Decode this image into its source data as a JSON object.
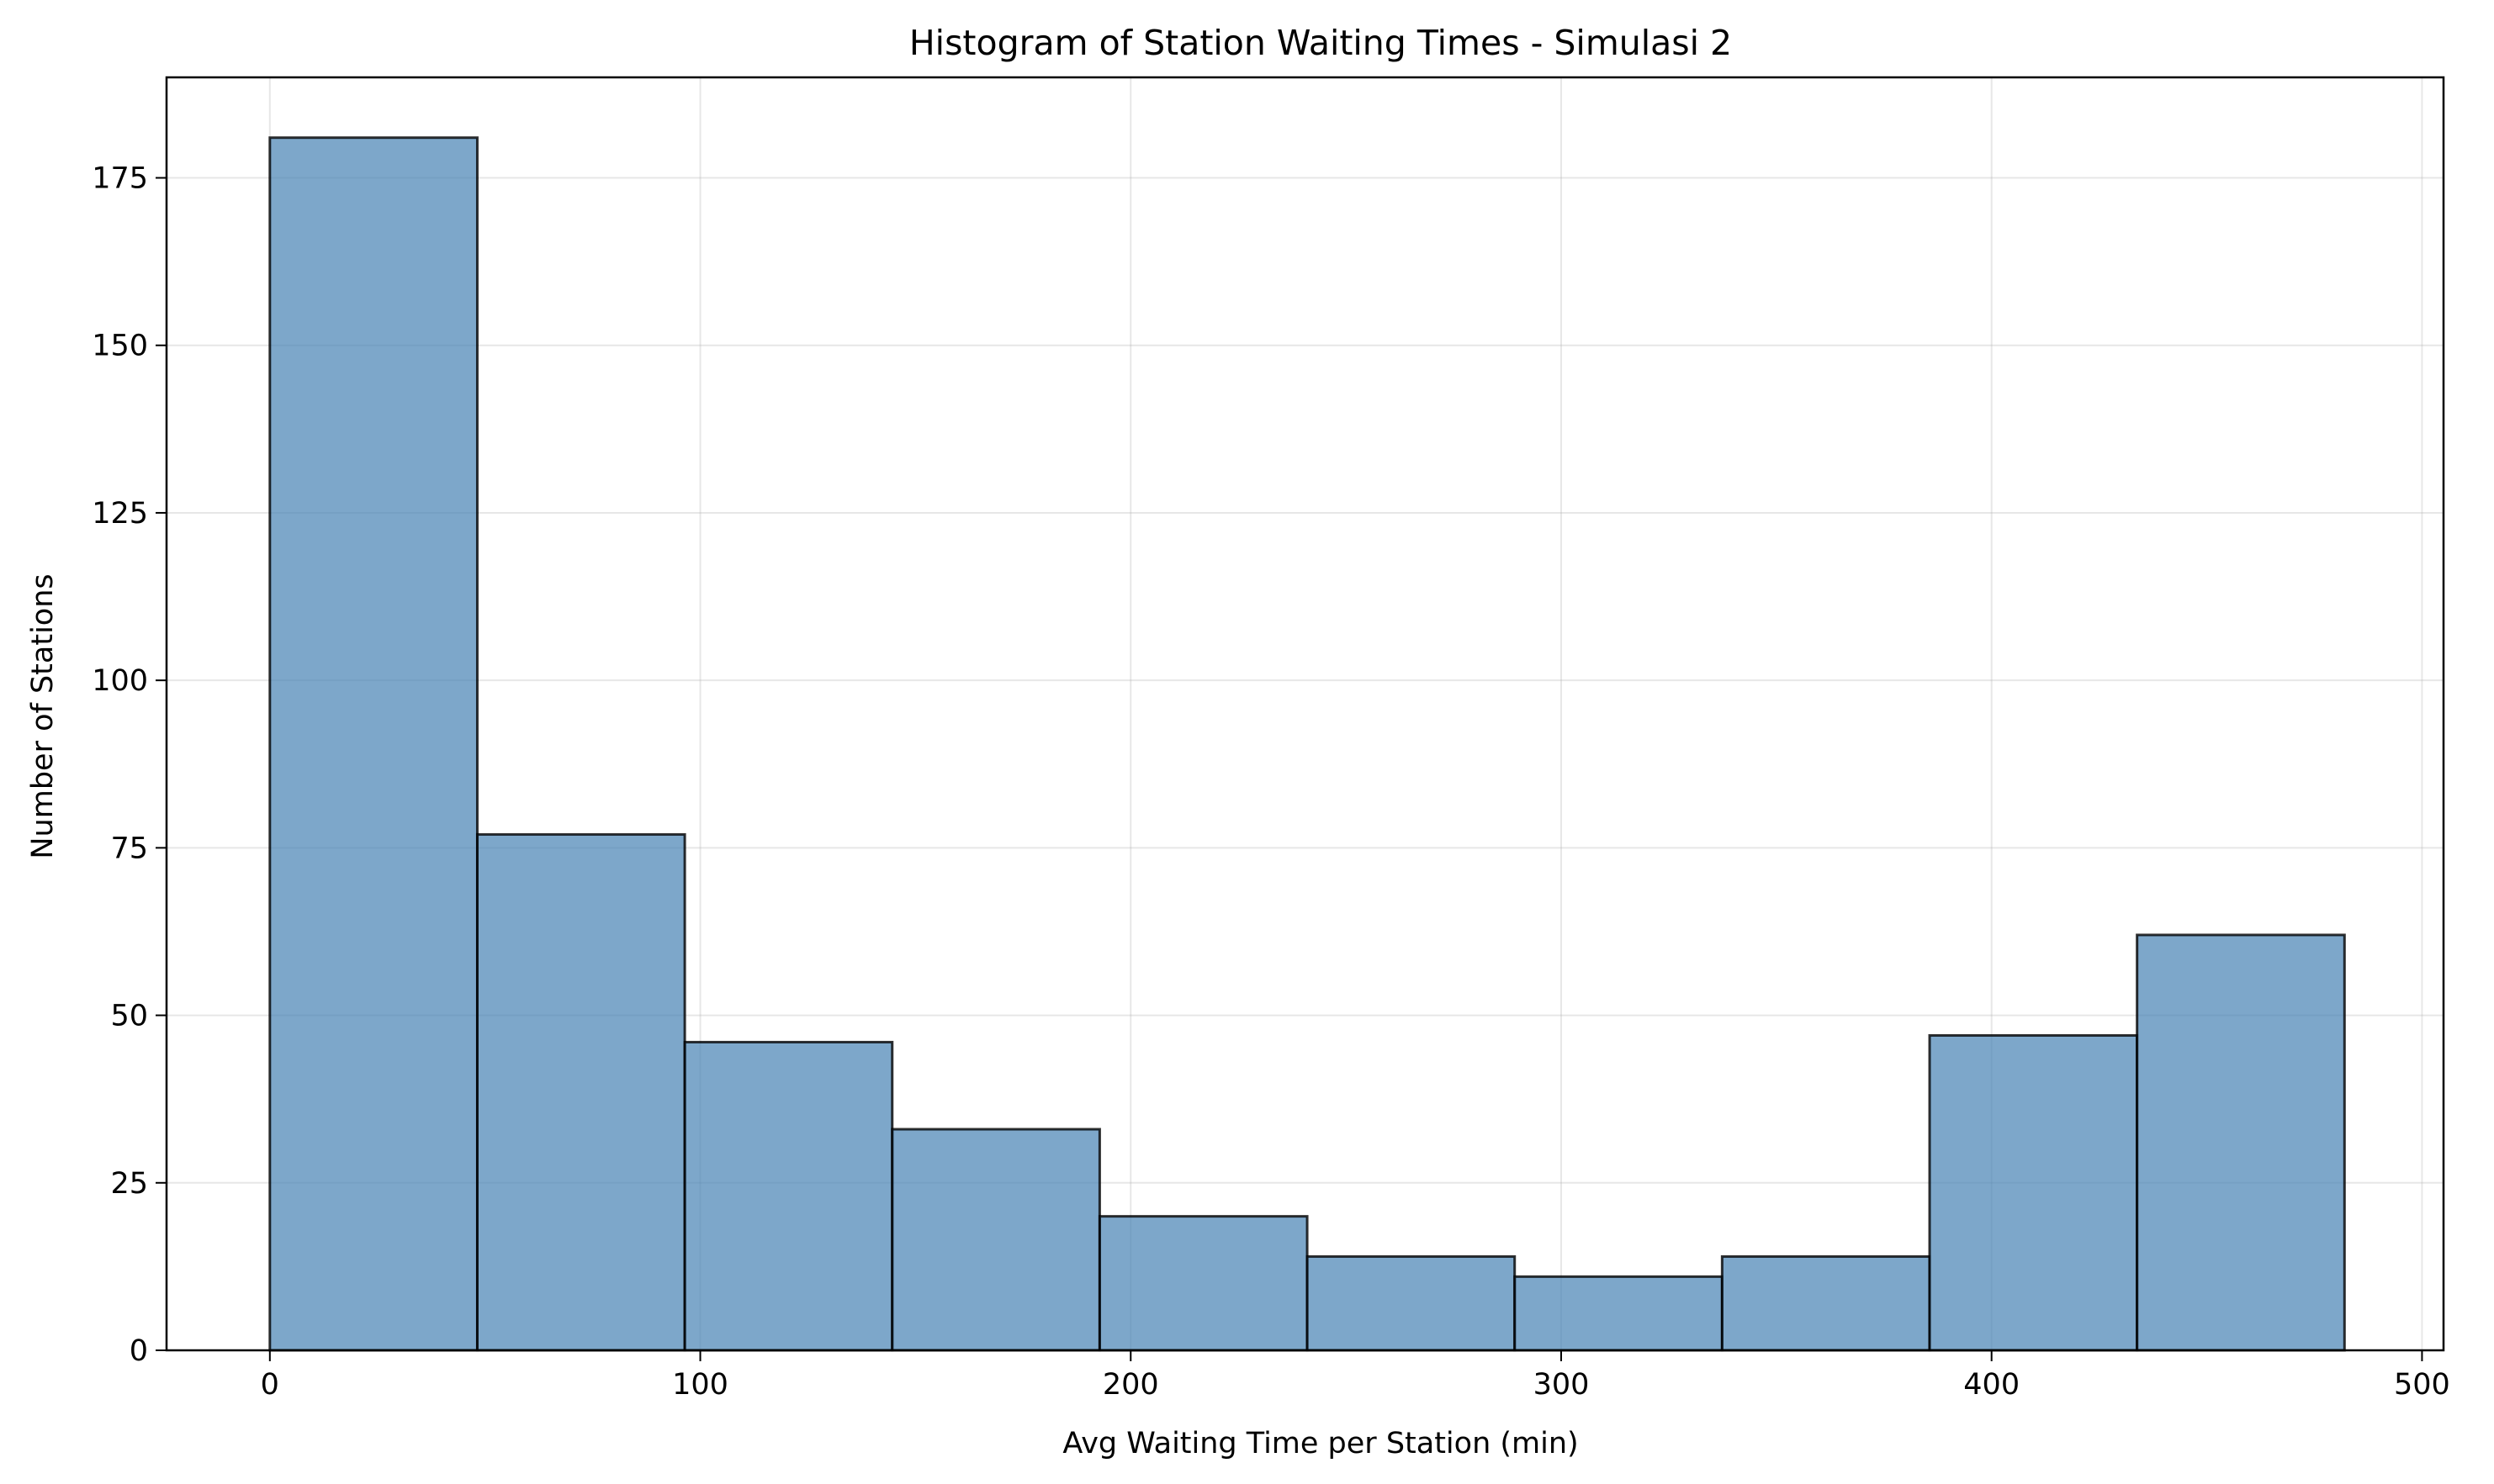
{
  "chart_data": {
    "type": "bar",
    "title": "Histogram of Station Waiting Times - Simulasi 2",
    "xlabel": "Avg Waiting Time per Station (min)",
    "ylabel": "Number of Stations",
    "xlim": [
      -24,
      505
    ],
    "ylim": [
      0,
      190
    ],
    "xticks": [
      0,
      100,
      200,
      300,
      400,
      500
    ],
    "yticks": [
      0,
      25,
      50,
      75,
      100,
      125,
      150,
      175
    ],
    "grid": true,
    "bar_color": "#4682b4",
    "edge_color": "#000000",
    "bins": [
      {
        "x0": 0,
        "x1": 48.2,
        "count": 181
      },
      {
        "x0": 48.2,
        "x1": 96.4,
        "count": 77
      },
      {
        "x0": 96.4,
        "x1": 144.6,
        "count": 46
      },
      {
        "x0": 144.6,
        "x1": 192.8,
        "count": 33
      },
      {
        "x0": 192.8,
        "x1": 241.0,
        "count": 20
      },
      {
        "x0": 241.0,
        "x1": 289.2,
        "count": 14
      },
      {
        "x0": 289.2,
        "x1": 337.4,
        "count": 11
      },
      {
        "x0": 337.4,
        "x1": 385.6,
        "count": 14
      },
      {
        "x0": 385.6,
        "x1": 433.8,
        "count": 47
      },
      {
        "x0": 433.8,
        "x1": 482.0,
        "count": 62
      }
    ]
  }
}
